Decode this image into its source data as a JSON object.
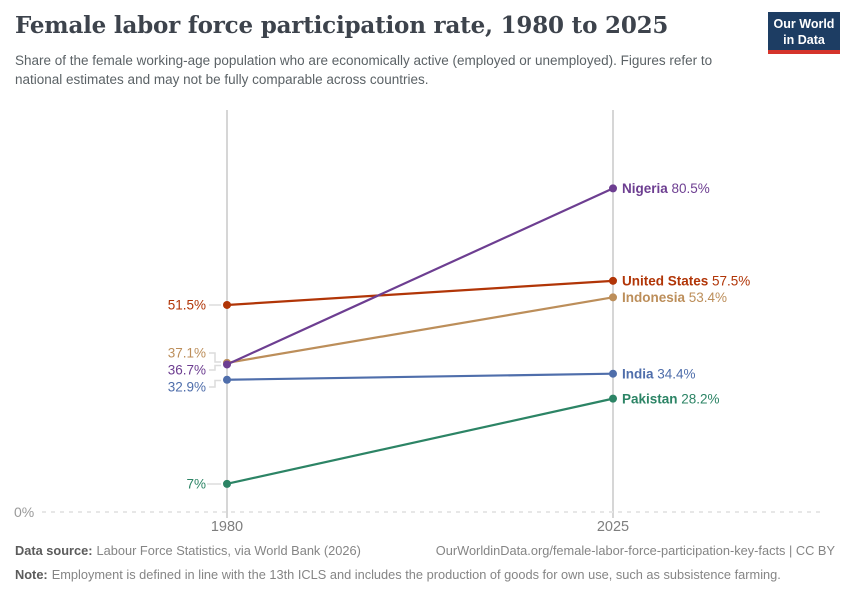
{
  "header": {
    "title": "Female labor force participation rate, 1980 to 2025",
    "subtitle": "Share of the female working-age population who are economically active (employed or unemployed). Figures refer to national estimates and may not be fully comparable across countries.",
    "logo": {
      "line1": "Our World",
      "line2": "in Data",
      "bg_color": "#1d3d63",
      "accent_color": "#d5342b"
    }
  },
  "chart_data": {
    "type": "line",
    "chart_kind": "slope",
    "title": "Female labor force participation rate, 1980 to 2025",
    "x": [
      1980,
      2025
    ],
    "x_tick_labels": [
      "1980",
      "2025"
    ],
    "ylabel": "",
    "ylim": [
      0,
      100
    ],
    "y_baseline_label": "0%",
    "grid": "zero-line-only",
    "legend_position": "inline-end-labels",
    "axis_color": "#cfcfcf",
    "zero_line_color": "#e7e7e7",
    "tick_label_color": "#7e7e7e",
    "zero_label_color": "#999999",
    "connector_color": "#dcdcdc",
    "series": [
      {
        "name": "United States",
        "values": [
          51.5,
          57.5
        ],
        "color": "#b13507",
        "start_label": "51.5%",
        "end_value_label": "57.5%"
      },
      {
        "name": "Indonesia",
        "values": [
          37.1,
          53.4
        ],
        "color": "#bc8e5a",
        "start_label": "37.1%",
        "end_value_label": "53.4%"
      },
      {
        "name": "Nigeria",
        "values": [
          36.7,
          80.5
        ],
        "color": "#6d3e91",
        "start_label": "36.7%",
        "end_value_label": "80.5%"
      },
      {
        "name": "India",
        "values": [
          32.9,
          34.4
        ],
        "color": "#4f6eab",
        "start_label": "32.9%",
        "end_value_label": "34.4%"
      },
      {
        "name": "Pakistan",
        "values": [
          7,
          28.2
        ],
        "color": "#2c8465",
        "start_label": "7%",
        "end_value_label": "28.2%"
      }
    ]
  },
  "footer": {
    "datasource_label": "Data source:",
    "datasource_text": "Labour Force Statistics, via World Bank (2026)",
    "citation": "OurWorldinData.org/female-labor-force-participation-key-facts | CC BY",
    "note_label": "Note:",
    "note_text": "Employment is defined in line with the 13th ICLS and includes the production of goods for own use, such as subsistence farming."
  }
}
